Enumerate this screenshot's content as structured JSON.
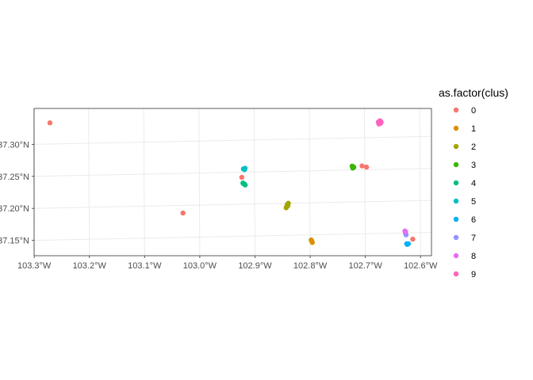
{
  "chart_data": {
    "type": "scatter",
    "title": "",
    "xlabel": "",
    "ylabel": "",
    "xlim": [
      -103.3,
      -102.58
    ],
    "ylim": [
      37.12,
      37.35
    ],
    "x_ticks": [
      {
        "value": -103.3,
        "label": "103.3°W"
      },
      {
        "value": -103.2,
        "label": "103.2°W"
      },
      {
        "value": -103.1,
        "label": "103.1°W"
      },
      {
        "value": -103.0,
        "label": "103.0°W"
      },
      {
        "value": -102.9,
        "label": "102.9°W"
      },
      {
        "value": -102.8,
        "label": "102.8°W"
      },
      {
        "value": -102.7,
        "label": "102.7°W"
      },
      {
        "value": -102.6,
        "label": "102.6°W"
      }
    ],
    "y_ticks": [
      {
        "value": 37.15,
        "label": "37.15°N"
      },
      {
        "value": 37.2,
        "label": "37.20°N"
      },
      {
        "value": 37.25,
        "label": "37.25°N"
      },
      {
        "value": 37.3,
        "label": "37.30°N"
      }
    ],
    "grid": true,
    "legend": {
      "title": "as.factor(clus)",
      "placement": "right",
      "entries": [
        {
          "label": "0",
          "color": "#F8766D"
        },
        {
          "label": "1",
          "color": "#D89000"
        },
        {
          "label": "2",
          "color": "#A3A500"
        },
        {
          "label": "3",
          "color": "#39B600"
        },
        {
          "label": "4",
          "color": "#00BF7D"
        },
        {
          "label": "5",
          "color": "#00BFC4"
        },
        {
          "label": "6",
          "color": "#00B0F6"
        },
        {
          "label": "7",
          "color": "#9590FF"
        },
        {
          "label": "8",
          "color": "#E76BF3"
        },
        {
          "label": "9",
          "color": "#FF62BC"
        }
      ]
    },
    "series": [
      {
        "cluster": "0",
        "color": "#F8766D",
        "points": [
          [
            -103.27,
            37.333
          ],
          [
            -103.03,
            37.188
          ],
          [
            -102.923,
            37.242
          ],
          [
            -102.705,
            37.256
          ],
          [
            -102.697,
            37.254
          ],
          [
            -102.614,
            37.14
          ]
        ]
      },
      {
        "cluster": "1",
        "color": "#D89000",
        "points": [
          [
            -102.797,
            37.14
          ],
          [
            -102.796,
            37.138
          ],
          [
            -102.798,
            37.142
          ]
        ]
      },
      {
        "cluster": "2",
        "color": "#A3A500",
        "points": [
          [
            -102.842,
            37.195
          ],
          [
            -102.841,
            37.198
          ],
          [
            -102.839,
            37.2
          ],
          [
            -102.843,
            37.193
          ],
          [
            -102.84,
            37.196
          ]
        ]
      },
      {
        "cluster": "3",
        "color": "#39B600",
        "points": [
          [
            -102.722,
            37.253
          ],
          [
            -102.721,
            37.255
          ],
          [
            -102.723,
            37.256
          ],
          [
            -102.72,
            37.254
          ]
        ]
      },
      {
        "cluster": "4",
        "color": "#00BF7D",
        "points": [
          [
            -102.92,
            37.232
          ],
          [
            -102.917,
            37.23
          ],
          [
            -102.918,
            37.231
          ],
          [
            -102.921,
            37.233
          ]
        ]
      },
      {
        "cluster": "5",
        "color": "#00BFC4",
        "points": [
          [
            -102.92,
            37.255
          ],
          [
            -102.917,
            37.256
          ],
          [
            -102.918,
            37.254
          ]
        ]
      },
      {
        "cluster": "6",
        "color": "#00B0F6",
        "points": [
          [
            -102.625,
            37.133
          ],
          [
            -102.622,
            37.133
          ],
          [
            -102.624,
            37.132
          ]
        ]
      },
      {
        "cluster": "7",
        "color": "#9590FF",
        "points": [
          [
            -102.627,
            37.149
          ],
          [
            -102.626,
            37.147
          ]
        ]
      },
      {
        "cluster": "8",
        "color": "#E76BF3",
        "points": [
          [
            -102.628,
            37.153
          ],
          [
            -102.627,
            37.152
          ]
        ]
      },
      {
        "cluster": "9",
        "color": "#FF62BC",
        "points": [
          [
            -102.675,
            37.324
          ],
          [
            -102.672,
            37.326
          ],
          [
            -102.671,
            37.322
          ],
          [
            -102.674,
            37.321
          ],
          [
            -102.673,
            37.325
          ],
          [
            -102.67,
            37.324
          ]
        ]
      }
    ]
  }
}
